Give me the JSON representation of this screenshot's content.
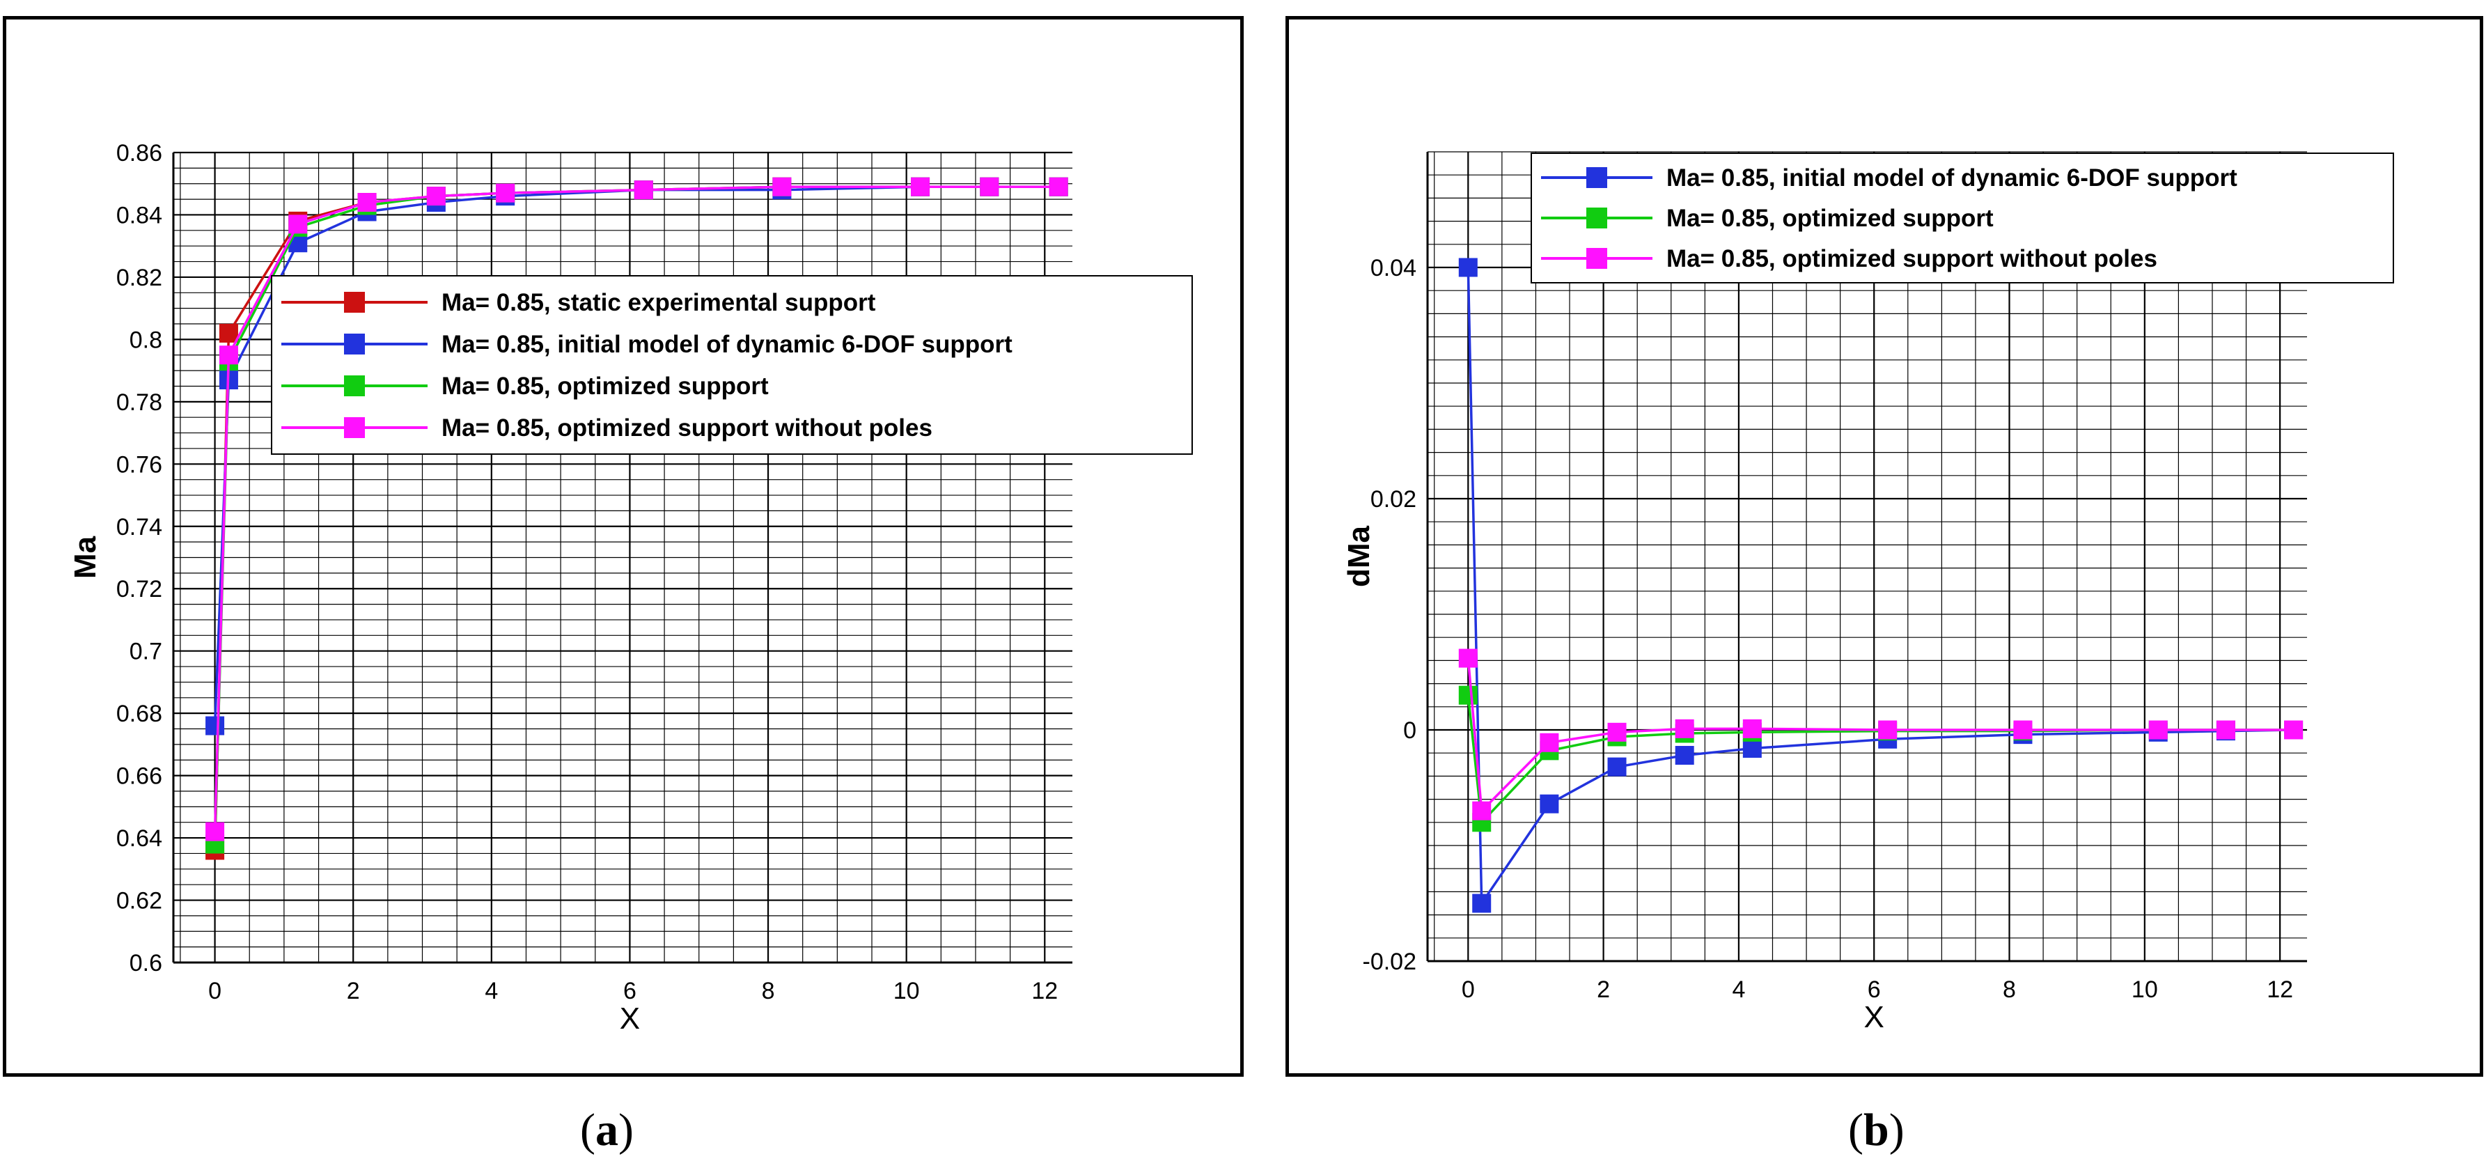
{
  "subfigure_labels": [
    {
      "open": "(",
      "letter": "a",
      "close": ")"
    },
    {
      "open": "(",
      "letter": "b",
      "close": ")"
    }
  ],
  "colors": {
    "static_experimental": "#cc1111",
    "initial_model": "#2233dd",
    "optimized": "#11cc11",
    "optimized_no_poles": "#ff11ff"
  },
  "chart_data": [
    {
      "type": "line",
      "title": "",
      "xlabel": "X",
      "ylabel": "Ma",
      "xlim": [
        -0.6,
        12.4
      ],
      "ylim": [
        0.6,
        0.86
      ],
      "xticks": [
        0,
        2,
        4,
        6,
        8,
        10,
        12
      ],
      "yticks": [
        0.6,
        0.62,
        0.64,
        0.66,
        0.68,
        0.7,
        0.72,
        0.74,
        0.76,
        0.78,
        0.8,
        0.82,
        0.84,
        0.86
      ],
      "ytick_labels": [
        "0.6",
        "0.62",
        "0.64",
        "0.66",
        "0.68",
        "0.7",
        "0.72",
        "0.74",
        "0.76",
        "0.78",
        "0.8",
        "0.82",
        "0.84",
        "0.86"
      ],
      "grid": true,
      "legend_position": "center-right",
      "x": [
        0,
        0.2,
        1.2,
        2.2,
        3.2,
        4.2,
        6.2,
        8.2,
        10.2,
        11.2,
        12.2
      ],
      "series": [
        {
          "name": "Ma= 0.85, static experimental support",
          "color_key": "static_experimental",
          "values": [
            0.636,
            0.802,
            0.838,
            0.844,
            0.846,
            0.847,
            0.848,
            0.849,
            0.849,
            0.849,
            0.849
          ]
        },
        {
          "name": "Ma= 0.85, initial model of dynamic 6-DOF support",
          "color_key": "initial_model",
          "values": [
            0.676,
            0.787,
            0.831,
            0.841,
            0.844,
            0.846,
            0.848,
            0.848,
            0.849,
            0.849,
            0.849
          ]
        },
        {
          "name": "Ma= 0.85, optimized support",
          "color_key": "optimized",
          "values": [
            0.638,
            0.793,
            0.836,
            0.843,
            0.846,
            0.847,
            0.848,
            0.849,
            0.849,
            0.849,
            0.849
          ]
        },
        {
          "name": "Ma= 0.85, optimized support without poles",
          "color_key": "optimized_no_poles",
          "values": [
            0.642,
            0.795,
            0.837,
            0.844,
            0.846,
            0.847,
            0.848,
            0.849,
            0.849,
            0.849,
            0.849
          ]
        }
      ]
    },
    {
      "type": "line",
      "title": "",
      "xlabel": "X",
      "ylabel": "dMa",
      "xlim": [
        -0.6,
        12.4
      ],
      "ylim": [
        -0.02,
        0.05
      ],
      "xticks": [
        0,
        2,
        4,
        6,
        8,
        10,
        12
      ],
      "yticks": [
        -0.02,
        0,
        0.02,
        0.04
      ],
      "ytick_labels": [
        "-0.02",
        "0",
        "0.02",
        "0.04"
      ],
      "grid": true,
      "legend_position": "top-right",
      "x": [
        0,
        0.2,
        1.2,
        2.2,
        3.2,
        4.2,
        6.2,
        8.2,
        10.2,
        11.2,
        12.2
      ],
      "series": [
        {
          "name": "Ma= 0.85, initial model of dynamic 6-DOF support",
          "color_key": "initial_model",
          "values": [
            0.04,
            -0.015,
            -0.0064,
            -0.0032,
            -0.0022,
            -0.0016,
            -0.0008,
            -0.0004,
            -0.0002,
            -0.0001,
            0
          ]
        },
        {
          "name": "Ma= 0.85, optimized support",
          "color_key": "optimized",
          "values": [
            0.003,
            -0.008,
            -0.0018,
            -0.0006,
            -0.0003,
            -0.0002,
            -0.0001,
            -0.0001,
            0,
            0,
            0
          ]
        },
        {
          "name": "Ma= 0.85, optimized support without poles",
          "color_key": "optimized_no_poles",
          "values": [
            0.0062,
            -0.007,
            -0.0011,
            -0.0002,
            0.0001,
            0.0001,
            0,
            0,
            0,
            0,
            0
          ]
        }
      ]
    }
  ]
}
